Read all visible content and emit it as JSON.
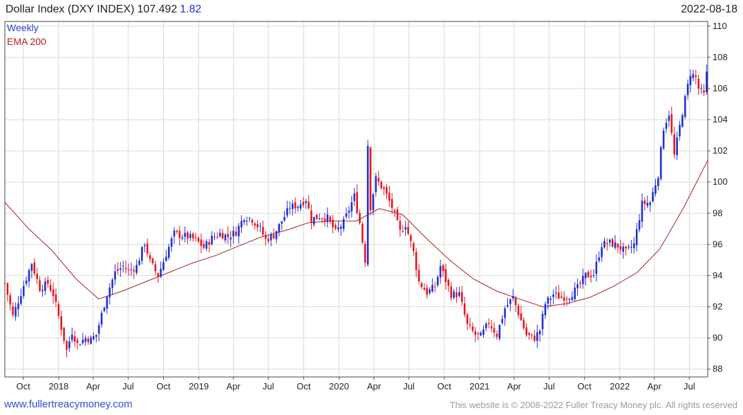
{
  "header": {
    "title": "Dollar Index (DXY INDEX)",
    "price": "107.492",
    "change": "1.82",
    "date": "2022-08-18"
  },
  "legend": {
    "series1": "Weekly",
    "series2": "EMA 200"
  },
  "footer": {
    "link": "www.fullertreacymoney.com",
    "copyright": "This website is © 2008-2022 Fuller Treacy Money plc. All rights reserved"
  },
  "chart_data": {
    "type": "candlestick",
    "x_start": "2017-08-14",
    "x_end": "2022-08-18",
    "ylim": [
      87.5,
      110.3
    ],
    "y_ticks": [
      88,
      90,
      92,
      94,
      96,
      98,
      100,
      102,
      104,
      106,
      108,
      110
    ],
    "x_ticks": [
      {
        "label": "Oct",
        "date": "2017-10-01"
      },
      {
        "label": "2018",
        "date": "2018-01-01"
      },
      {
        "label": "Apr",
        "date": "2018-04-01"
      },
      {
        "label": "Jul",
        "date": "2018-07-01"
      },
      {
        "label": "Oct",
        "date": "2018-10-01"
      },
      {
        "label": "2019",
        "date": "2019-01-01"
      },
      {
        "label": "Apr",
        "date": "2019-04-01"
      },
      {
        "label": "Jul",
        "date": "2019-07-01"
      },
      {
        "label": "Oct",
        "date": "2019-10-01"
      },
      {
        "label": "2020",
        "date": "2020-01-01"
      },
      {
        "label": "Apr",
        "date": "2020-04-01"
      },
      {
        "label": "Jul",
        "date": "2020-07-01"
      },
      {
        "label": "Oct",
        "date": "2020-10-01"
      },
      {
        "label": "2021",
        "date": "2021-01-01"
      },
      {
        "label": "Apr",
        "date": "2021-04-01"
      },
      {
        "label": "Jul",
        "date": "2021-07-01"
      },
      {
        "label": "Oct",
        "date": "2021-10-01"
      },
      {
        "label": "2022",
        "date": "2022-01-01"
      },
      {
        "label": "Apr",
        "date": "2022-04-01"
      },
      {
        "label": "Jul",
        "date": "2022-07-01"
      }
    ],
    "grid": true,
    "colors": {
      "up": "#1f2fd6",
      "down": "#e8141e",
      "ema": "#a52222",
      "grid": "#d9d9d9"
    },
    "series": [
      {
        "name": "Weekly",
        "type": "weekly-close",
        "points": [
          [
            "2017-08-14",
            93.5
          ],
          [
            "2017-09-04",
            91.4
          ],
          [
            "2017-10-01",
            93.3
          ],
          [
            "2017-10-23",
            94.8
          ],
          [
            "2017-11-13",
            93.2
          ],
          [
            "2017-12-04",
            93.5
          ],
          [
            "2017-12-18",
            92.8
          ],
          [
            "2018-01-01",
            91.4
          ],
          [
            "2018-01-22",
            89.2
          ],
          [
            "2018-02-05",
            90.4
          ],
          [
            "2018-02-19",
            89.6
          ],
          [
            "2018-03-12",
            90.0
          ],
          [
            "2018-03-26",
            89.9
          ],
          [
            "2018-04-09",
            90.2
          ],
          [
            "2018-04-23",
            91.5
          ],
          [
            "2018-05-07",
            92.8
          ],
          [
            "2018-05-28",
            94.2
          ],
          [
            "2018-06-18",
            94.6
          ],
          [
            "2018-07-02",
            94.3
          ],
          [
            "2018-07-23",
            94.6
          ],
          [
            "2018-08-13",
            96.1
          ],
          [
            "2018-08-27",
            94.9
          ],
          [
            "2018-09-17",
            94.0
          ],
          [
            "2018-10-08",
            95.4
          ],
          [
            "2018-10-29",
            96.7
          ],
          [
            "2018-11-12",
            96.6
          ],
          [
            "2018-12-03",
            96.5
          ],
          [
            "2018-12-24",
            96.3
          ],
          [
            "2019-01-14",
            95.8
          ],
          [
            "2019-02-04",
            96.4
          ],
          [
            "2019-02-25",
            96.7
          ],
          [
            "2019-03-18",
            96.5
          ],
          [
            "2019-04-08",
            96.8
          ],
          [
            "2019-04-29",
            97.8
          ],
          [
            "2019-05-20",
            97.6
          ],
          [
            "2019-06-10",
            97.0
          ],
          [
            "2019-06-24",
            96.3
          ],
          [
            "2019-07-15",
            96.6
          ],
          [
            "2019-08-05",
            97.5
          ],
          [
            "2019-08-26",
            98.4
          ],
          [
            "2019-09-16",
            98.5
          ],
          [
            "2019-10-07",
            98.9
          ],
          [
            "2019-10-21",
            97.6
          ],
          [
            "2019-11-11",
            97.8
          ],
          [
            "2019-12-02",
            97.7
          ],
          [
            "2019-12-23",
            96.8
          ],
          [
            "2020-01-13",
            97.4
          ],
          [
            "2020-02-10",
            99.1
          ],
          [
            "2020-02-24",
            97.4
          ],
          [
            "2020-03-09",
            95.0
          ],
          [
            "2020-03-16",
            102.4
          ],
          [
            "2020-03-23",
            98.4
          ],
          [
            "2020-04-06",
            100.2
          ],
          [
            "2020-04-27",
            99.5
          ],
          [
            "2020-05-18",
            98.4
          ],
          [
            "2020-06-08",
            96.8
          ],
          [
            "2020-06-22",
            97.3
          ],
          [
            "2020-07-13",
            95.5
          ],
          [
            "2020-07-27",
            93.6
          ],
          [
            "2020-08-17",
            92.9
          ],
          [
            "2020-09-07",
            93.3
          ],
          [
            "2020-09-21",
            94.6
          ],
          [
            "2020-10-19",
            92.8
          ],
          [
            "2020-11-09",
            92.8
          ],
          [
            "2020-11-30",
            90.8
          ],
          [
            "2020-12-21",
            90.2
          ],
          [
            "2021-01-04",
            90.1
          ],
          [
            "2021-01-25",
            91.0
          ],
          [
            "2021-02-15",
            90.2
          ],
          [
            "2021-03-08",
            91.9
          ],
          [
            "2021-03-29",
            92.6
          ],
          [
            "2021-04-12",
            91.6
          ],
          [
            "2021-05-03",
            90.2
          ],
          [
            "2021-05-24",
            90.0
          ],
          [
            "2021-06-07",
            90.5
          ],
          [
            "2021-06-21",
            92.2
          ],
          [
            "2021-07-12",
            92.8
          ],
          [
            "2021-08-02",
            92.6
          ],
          [
            "2021-08-23",
            92.7
          ],
          [
            "2021-09-13",
            93.2
          ],
          [
            "2021-10-04",
            94.0
          ],
          [
            "2021-10-25",
            94.1
          ],
          [
            "2021-11-15",
            96.0
          ],
          [
            "2021-12-06",
            96.1
          ],
          [
            "2021-12-27",
            95.9
          ],
          [
            "2022-01-17",
            95.5
          ],
          [
            "2022-02-07",
            96.0
          ],
          [
            "2022-02-28",
            98.6
          ],
          [
            "2022-03-21",
            98.7
          ],
          [
            "2022-04-11",
            100.5
          ],
          [
            "2022-04-25",
            103.5
          ],
          [
            "2022-05-09",
            104.4
          ],
          [
            "2022-05-23",
            101.7
          ],
          [
            "2022-06-13",
            104.5
          ],
          [
            "2022-07-04",
            107.0
          ],
          [
            "2022-07-18",
            106.7
          ],
          [
            "2022-07-25",
            106.0
          ],
          [
            "2022-08-08",
            105.6
          ],
          [
            "2022-08-18",
            107.492
          ]
        ]
      },
      {
        "name": "EMA 200",
        "type": "line",
        "points": [
          [
            "2017-08-14",
            98.7
          ],
          [
            "2017-10-15",
            97.0
          ],
          [
            "2017-12-15",
            95.6
          ],
          [
            "2018-02-15",
            93.8
          ],
          [
            "2018-04-15",
            92.5
          ],
          [
            "2018-06-15",
            93.0
          ],
          [
            "2018-08-15",
            93.6
          ],
          [
            "2018-10-15",
            94.2
          ],
          [
            "2018-12-15",
            94.8
          ],
          [
            "2019-02-15",
            95.3
          ],
          [
            "2019-04-15",
            95.9
          ],
          [
            "2019-06-15",
            96.5
          ],
          [
            "2019-08-15",
            96.9
          ],
          [
            "2019-10-15",
            97.4
          ],
          [
            "2019-12-15",
            97.5
          ],
          [
            "2020-02-15",
            97.5
          ],
          [
            "2020-04-15",
            98.3
          ],
          [
            "2020-06-15",
            97.9
          ],
          [
            "2020-08-15",
            96.4
          ],
          [
            "2020-10-15",
            95.0
          ],
          [
            "2020-12-15",
            93.8
          ],
          [
            "2021-02-15",
            93.0
          ],
          [
            "2021-04-15",
            92.5
          ],
          [
            "2021-06-15",
            92.0
          ],
          [
            "2021-08-15",
            92.2
          ],
          [
            "2021-10-15",
            92.6
          ],
          [
            "2021-12-15",
            93.3
          ],
          [
            "2022-02-15",
            94.2
          ],
          [
            "2022-04-15",
            95.7
          ],
          [
            "2022-06-15",
            98.3
          ],
          [
            "2022-08-18",
            101.4
          ]
        ]
      }
    ]
  }
}
